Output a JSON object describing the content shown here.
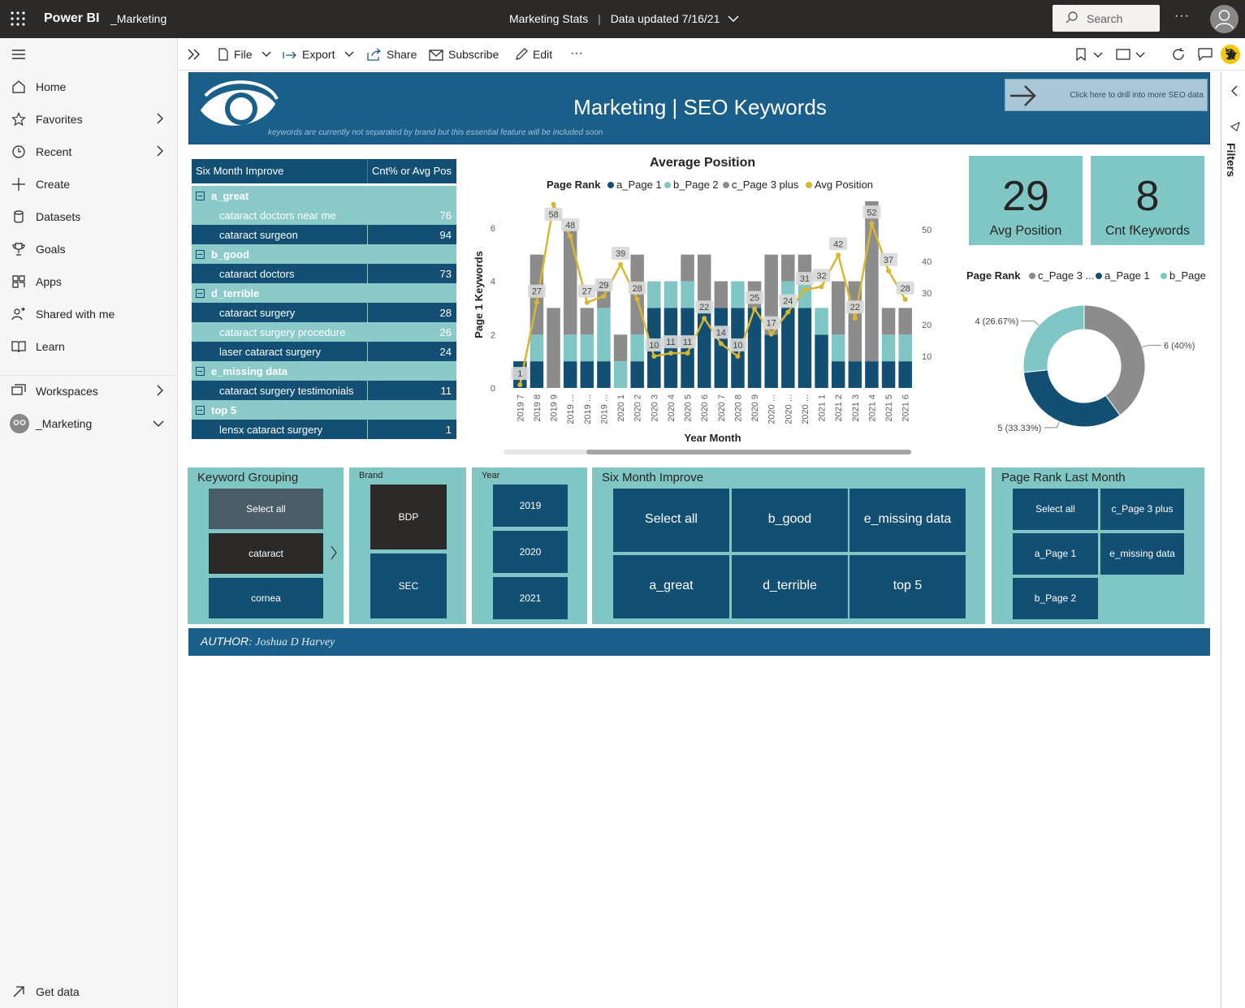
{
  "topbar": {
    "brand": "Power BI",
    "workspace": "_Marketing",
    "report_title": "Marketing Stats",
    "updated": "Data updated 7/16/21",
    "search_placeholder": "Search",
    "more": "···"
  },
  "nav": {
    "items": [
      {
        "label": "Home",
        "icon": "home-icon",
        "chevron": false
      },
      {
        "label": "Favorites",
        "icon": "star-icon",
        "chevron": true
      },
      {
        "label": "Recent",
        "icon": "clock-icon",
        "chevron": true
      },
      {
        "label": "Create",
        "icon": "plus-icon",
        "chevron": false
      },
      {
        "label": "Datasets",
        "icon": "database-icon",
        "chevron": false
      },
      {
        "label": "Goals",
        "icon": "trophy-icon",
        "chevron": false
      },
      {
        "label": "Apps",
        "icon": "apps-icon",
        "chevron": false
      },
      {
        "label": "Shared with me",
        "icon": "shared-icon",
        "chevron": false
      },
      {
        "label": "Learn",
        "icon": "book-icon",
        "chevron": false
      }
    ],
    "workspaces": "Workspaces",
    "current_workspace": "_Marketing",
    "get_data": "Get data"
  },
  "toolbar": {
    "file": "File",
    "export": "Export",
    "share": "Share",
    "subscribe": "Subscribe",
    "edit": "Edit",
    "more": "···"
  },
  "filters_pane": {
    "label": "Filters"
  },
  "banner": {
    "title": "Marketing | SEO Keywords",
    "subtitle": "keywords are currently not separated by brand but this essential feature will be included soon",
    "drill_text": "Click here to drill into more SEO data"
  },
  "matrix": {
    "headers": [
      "Six Month Improve",
      "Cnt% or Avg Pos"
    ],
    "rows": [
      {
        "type": "group",
        "label": "a_great",
        "value": "",
        "style": "light"
      },
      {
        "type": "item",
        "label": "cataract doctors near me",
        "value": "76",
        "style": "light"
      },
      {
        "type": "item",
        "label": "cataract surgeon",
        "value": "94",
        "style": "dark"
      },
      {
        "type": "group",
        "label": "b_good",
        "value": "",
        "style": "light"
      },
      {
        "type": "item",
        "label": "cataract doctors",
        "value": "73",
        "style": "dark"
      },
      {
        "type": "group",
        "label": "d_terrible",
        "value": "",
        "style": "light"
      },
      {
        "type": "item",
        "label": "cataract surgery",
        "value": "28",
        "style": "dark"
      },
      {
        "type": "item",
        "label": "cataract surgery procedure",
        "value": "26",
        "style": "light"
      },
      {
        "type": "item",
        "label": "laser cataract surgery",
        "value": "24",
        "style": "dark"
      },
      {
        "type": "group",
        "label": "e_missing data",
        "value": "",
        "style": "light"
      },
      {
        "type": "item",
        "label": "cataract surgery testimonials",
        "value": "11",
        "style": "dark"
      },
      {
        "type": "group",
        "label": "top 5",
        "value": "",
        "style": "light"
      },
      {
        "type": "item",
        "label": "lensx cataract surgery",
        "value": "1",
        "style": "dark"
      }
    ]
  },
  "kpis": [
    {
      "value": "29",
      "label": "Avg Position"
    },
    {
      "value": "8",
      "label": "Cnt fKeywords"
    }
  ],
  "chart_data": [
    {
      "type": "bar",
      "title": "Average Position",
      "legend_title": "Page Rank",
      "legend_placement": "top",
      "xlabel": "Year Month",
      "ylabel": "Page 1 Keywords",
      "y2label": "Avg Position",
      "ylim": [
        0,
        7
      ],
      "y2lim": [
        0,
        59
      ],
      "yticks": [
        0,
        2,
        4,
        6
      ],
      "y2ticks": [
        10,
        20,
        30,
        40,
        50
      ],
      "categories": [
        "2019 7",
        "2019 8",
        "2019 9",
        "2019 ...",
        "2019 ...",
        "2019 ...",
        "2020 1",
        "2020 2",
        "2020 3",
        "2020 4",
        "2020 5",
        "2020 6",
        "2020 7",
        "2020 8",
        "2020 9",
        "2020 ...",
        "2020 ...",
        "2020 ...",
        "2021 1",
        "2021 2",
        "2021 3",
        "2021 4",
        "2021 5",
        "2021 6"
      ],
      "series": [
        {
          "name": "a_Page 1",
          "color": "#124f73",
          "values": [
            1,
            1,
            0,
            1,
            1,
            1,
            0,
            1,
            3,
            3,
            3,
            3,
            3,
            3,
            3,
            2,
            3,
            3,
            2,
            1,
            1,
            1,
            1,
            1
          ]
        },
        {
          "name": "b_Page 2",
          "color": "#80c6c4",
          "values": [
            0,
            1,
            0,
            1,
            1,
            2,
            1,
            1,
            1,
            1,
            1,
            0,
            0,
            1,
            0,
            0,
            1,
            1,
            1,
            1,
            0,
            0,
            1,
            1
          ]
        },
        {
          "name": "c_Page 3 plus",
          "color": "#8c8c8c",
          "values": [
            0,
            3,
            3,
            4,
            1,
            1,
            1,
            3,
            0,
            0,
            1,
            2,
            1,
            0,
            1,
            3,
            1,
            1,
            0,
            2,
            3,
            6,
            1,
            1
          ]
        },
        {
          "name": "Avg Position",
          "color": "#d8b632",
          "type": "line",
          "values": [
            1,
            27,
            58,
            48,
            27,
            29,
            39,
            28,
            10,
            11,
            11,
            22,
            14,
            10,
            25,
            17,
            24,
            31,
            32,
            42,
            22,
            52,
            37,
            28
          ]
        }
      ]
    },
    {
      "type": "pie",
      "legend_title": "Page Rank",
      "legend_placement": "top",
      "legend": [
        "c_Page 3 ...",
        "a_Page 1",
        "b_Page 2"
      ],
      "slices": [
        {
          "name": "c_Page 3 plus",
          "value": 6,
          "label": "6 (40%)",
          "color": "#8c8c8c"
        },
        {
          "name": "a_Page 1",
          "value": 5,
          "label": "5 (33.33%)",
          "color": "#124f73"
        },
        {
          "name": "b_Page 2",
          "value": 4,
          "label": "4 (26.67%)",
          "color": "#80c6c4"
        }
      ]
    }
  ],
  "slicers": {
    "keyword_grouping": {
      "title": "Keyword Grouping",
      "options": [
        "Select all",
        "cataract",
        "cornea"
      ]
    },
    "brand": {
      "title": "Brand",
      "options": [
        "BDP",
        "SEC"
      ]
    },
    "year": {
      "title": "Year",
      "options": [
        "2019",
        "2020",
        "2021"
      ]
    },
    "six_month": {
      "title": "Six Month Improve",
      "options": [
        "Select all",
        "b_good",
        "e_missing data",
        "a_great",
        "d_terrible",
        "top 5"
      ]
    },
    "page_rank": {
      "title": "Page Rank Last Month",
      "options": [
        "Select all",
        "c_Page 3 plus",
        "a_Page 1",
        "e_missing data",
        "b_Page 2"
      ]
    }
  },
  "author": {
    "prefix": "AUTHOR",
    "name": ": Joshua D Harvey"
  }
}
